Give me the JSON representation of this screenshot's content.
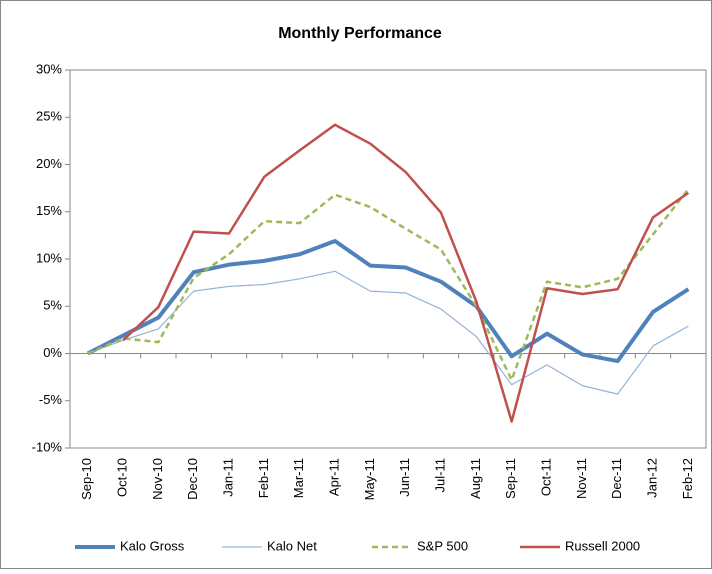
{
  "chart_data": {
    "type": "line",
    "title": "Monthly Performance",
    "categories": [
      "Sep-10",
      "Oct-10",
      "Nov-10",
      "Dec-10",
      "Jan-11",
      "Feb-11",
      "Mar-11",
      "Apr-11",
      "May-11",
      "Jun-11",
      "Jul-11",
      "Aug-11",
      "Sep-11",
      "Oct-11",
      "Nov-11",
      "Dec-11",
      "Jan-12",
      "Feb-12"
    ],
    "series": [
      {
        "name": "Kalo Gross",
        "color": "#4f81bd",
        "line_width": 4,
        "line_style": "solid",
        "values": [
          0,
          1.9,
          3.8,
          8.6,
          9.4,
          9.8,
          10.5,
          11.9,
          9.3,
          9.1,
          7.6,
          5.0,
          -0.3,
          2.1,
          -0.1,
          -0.8,
          4.4,
          6.8
        ]
      },
      {
        "name": "Kalo Net",
        "color": "#95b3d7",
        "line_width": 1.2,
        "line_style": "solid",
        "values": [
          0,
          1.4,
          2.6,
          6.6,
          7.1,
          7.3,
          7.9,
          8.7,
          6.6,
          6.4,
          4.7,
          1.8,
          -3.3,
          -1.2,
          -3.4,
          -4.3,
          0.8,
          2.9
        ]
      },
      {
        "name": "S&P 500",
        "color": "#9bbb59",
        "line_width": 2.5,
        "line_style": "dashed",
        "values": [
          0,
          1.6,
          1.2,
          8.0,
          10.5,
          14.0,
          13.8,
          16.8,
          15.5,
          13.2,
          11.0,
          5.0,
          -2.8,
          7.6,
          7.0,
          7.9,
          12.6,
          17.4
        ]
      },
      {
        "name": "Russell 2000",
        "color": "#c0504d",
        "line_width": 2.5,
        "line_style": "solid",
        "values": [
          null,
          1.4,
          4.9,
          12.9,
          12.7,
          18.7,
          21.5,
          24.2,
          22.2,
          19.2,
          14.9,
          5.5,
          -7.2,
          6.9,
          6.3,
          6.8,
          14.4,
          17.0
        ]
      }
    ],
    "ylim": [
      -10,
      30
    ],
    "yticks": [
      {
        "value": -10,
        "label": "-10%"
      },
      {
        "value": -5,
        "label": "-5%"
      },
      {
        "value": 0,
        "label": "0%"
      },
      {
        "value": 5,
        "label": "5%"
      },
      {
        "value": 10,
        "label": "10%"
      },
      {
        "value": 15,
        "label": "15%"
      },
      {
        "value": 20,
        "label": "20%"
      },
      {
        "value": 25,
        "label": "25%"
      },
      {
        "value": 30,
        "label": "30%"
      }
    ],
    "grid": false,
    "legend": "bottom"
  }
}
